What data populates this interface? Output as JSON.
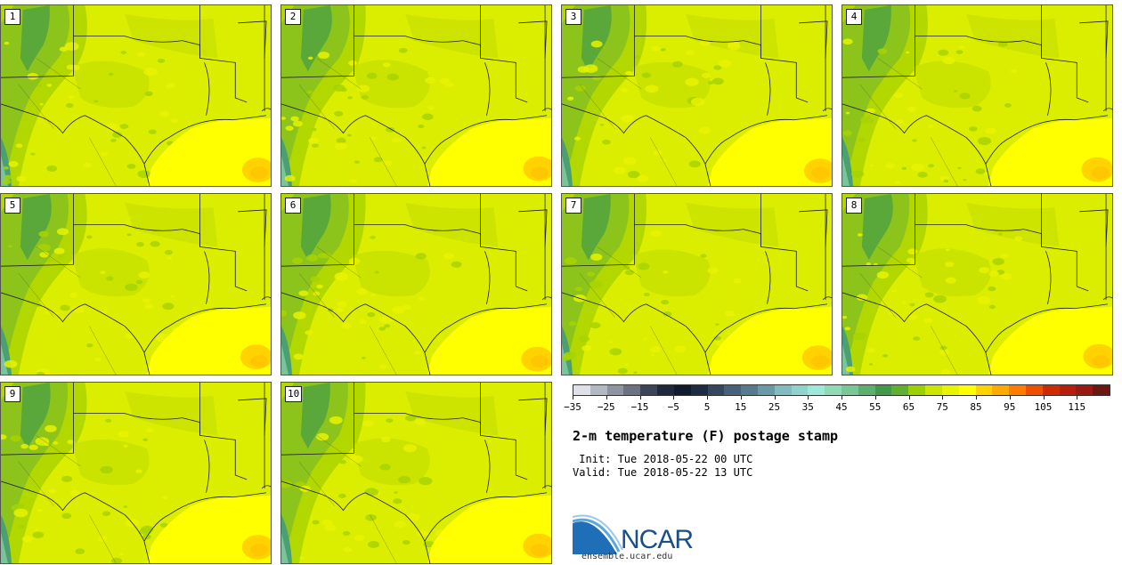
{
  "chart_data": {
    "type": "heatmap",
    "title": "2-m temperature (F) postage stamp",
    "init_label": " Init: Tue 2018-05-22 00 UTC",
    "valid_label": "Valid: Tue 2018-05-22 13 UTC",
    "units": "F",
    "members": [
      "1",
      "2",
      "3",
      "4",
      "5",
      "6",
      "7",
      "8",
      "9",
      "10"
    ],
    "colorbar": {
      "range": [
        -35,
        125
      ],
      "ticks": [
        "-35",
        "-25",
        "-15",
        "-5",
        "5",
        "15",
        "25",
        "35",
        "45",
        "55",
        "65",
        "75",
        "85",
        "95",
        "105",
        "115"
      ],
      "colors": [
        "#dfe0e8",
        "#b4b8c3",
        "#8e94a2",
        "#6a7284",
        "#3b4458",
        "#1e2940",
        "#101b30",
        "#1d2b45",
        "#33475e",
        "#46617a",
        "#567a8e",
        "#6a9aa8",
        "#83bcc0",
        "#8fd3cc",
        "#9de8d8",
        "#8fd9b4",
        "#79c794",
        "#5cb06e",
        "#419a49",
        "#5fb030",
        "#9cd000",
        "#cbe600",
        "#e9f400",
        "#ffff00",
        "#ffd200",
        "#ffaa00",
        "#ff7c00",
        "#f04e00",
        "#cf2b00",
        "#b81e0c",
        "#991a12",
        "#6e1610"
      ]
    },
    "approx_field": {
      "land_range_F": [
        55,
        80
      ],
      "gulf_range_F": [
        75,
        85
      ]
    }
  },
  "branding": {
    "org": "NCAR",
    "site": "ensemble.ucar.edu"
  }
}
